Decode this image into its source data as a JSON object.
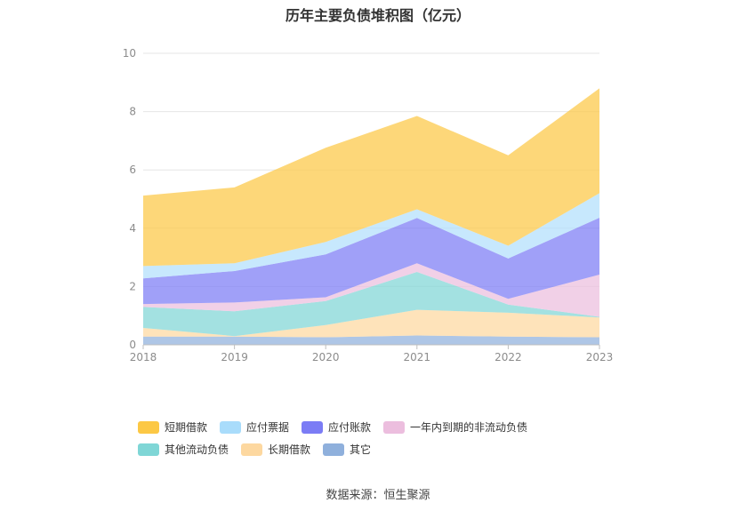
{
  "title": "历年主要负债堆积图（亿元）",
  "source": "数据来源：恒生聚源",
  "chart_data": {
    "type": "area",
    "stacked": true,
    "categories": [
      "2018",
      "2019",
      "2020",
      "2021",
      "2022",
      "2023"
    ],
    "ylim": [
      0,
      10
    ],
    "yticks": [
      "0",
      "2",
      "4",
      "6",
      "8",
      "10"
    ],
    "grid": true,
    "legend_position": "bottom",
    "series": [
      {
        "name": "其它",
        "color": "#8fb0dc",
        "values": [
          0.28,
          0.28,
          0.26,
          0.32,
          0.28,
          0.26
        ]
      },
      {
        "name": "长期借款",
        "color": "#fdd8a0",
        "values": [
          0.3,
          0.02,
          0.42,
          0.88,
          0.82,
          0.68
        ]
      },
      {
        "name": "其他流动负债",
        "color": "#7fd6d6",
        "values": [
          0.72,
          0.85,
          0.82,
          1.3,
          0.28,
          0.02
        ]
      },
      {
        "name": "一年内到期的非流动负债",
        "color": "#ecbede",
        "values": [
          0.1,
          0.3,
          0.13,
          0.3,
          0.2,
          1.45
        ]
      },
      {
        "name": "应付账款",
        "color": "#7b7cf5",
        "values": [
          0.88,
          1.08,
          1.47,
          1.55,
          1.38,
          1.95
        ]
      },
      {
        "name": "应付票据",
        "color": "#b1dffc",
        "values": [
          0.42,
          0.27,
          0.43,
          0.3,
          0.44,
          0.84
        ]
      },
      {
        "name": "短期借款",
        "color": "#fcc845",
        "values": [
          2.42,
          2.6,
          3.23,
          3.2,
          3.1,
          3.6
        ]
      }
    ]
  },
  "legend": [
    {
      "label": "短期借款",
      "color": "#fcc845"
    },
    {
      "label": "应付票据",
      "color": "#a9dcfb"
    },
    {
      "label": "应付账款",
      "color": "#7b7cf5"
    },
    {
      "label": "一年内到期的非流动负债",
      "color": "#ecbede"
    },
    {
      "label": "其他流动负债",
      "color": "#7fd6d6"
    },
    {
      "label": "长期借款",
      "color": "#fdd8a0"
    },
    {
      "label": "其它",
      "color": "#8fb0dc"
    }
  ]
}
